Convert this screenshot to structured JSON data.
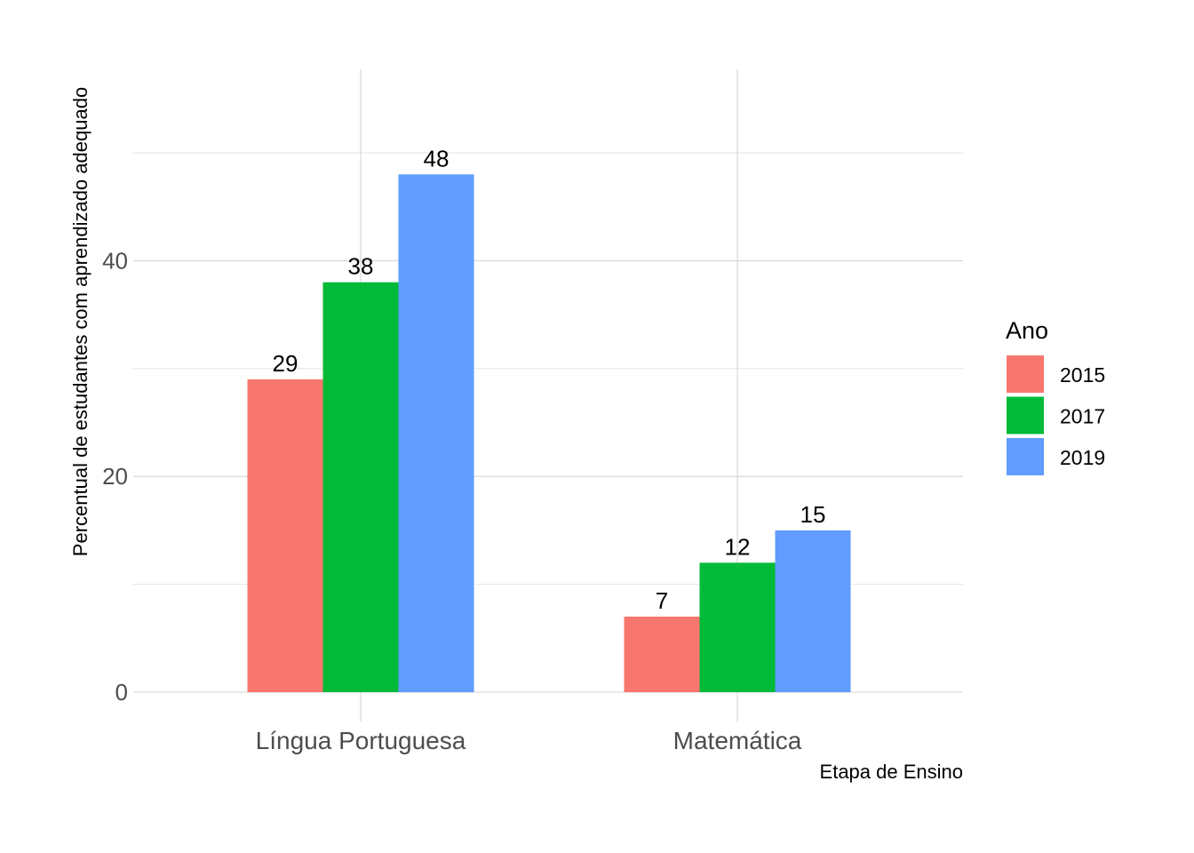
{
  "chart_data": {
    "type": "bar",
    "categories": [
      "Língua Portuguesa",
      "Matemática"
    ],
    "series": [
      {
        "name": "2015",
        "values": [
          29,
          7
        ],
        "color": "#F8766D"
      },
      {
        "name": "2017",
        "values": [
          38,
          12
        ],
        "color": "#00BA38"
      },
      {
        "name": "2019",
        "values": [
          48,
          15
        ],
        "color": "#619CFF"
      }
    ],
    "xlabel": "Etapa de Ensino",
    "ylabel": "Percentual de estudantes com aprendizado adequado",
    "ylim": [
      0,
      56
    ],
    "yticks": [
      0,
      20,
      40
    ],
    "grid": true,
    "legend": {
      "title": "Ano",
      "position": "right"
    }
  }
}
